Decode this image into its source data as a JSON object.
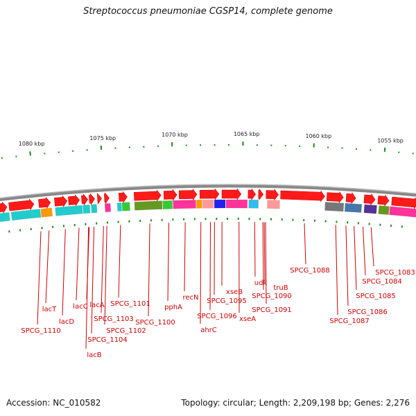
{
  "title": "Streptococcus pneumoniae CGSP14, complete genome",
  "footer": {
    "accession": "Accession: NC_010582",
    "summary": "Topology: circular; Length: 2,209,198 bp; Genes: 2,276"
  },
  "ruler_ticks": [
    "1080 kbp",
    "1075 kbp",
    "1070 kbp",
    "1065 kbp",
    "1060 kbp",
    "1055 kbp"
  ],
  "gene_labels": [
    "lacT",
    "SPCG_1110",
    "lacD",
    "lacC",
    "lacA",
    "lacB",
    "SPCG_1104",
    "SPCG_1103",
    "SPCG_1102",
    "SPCG_1101",
    "SPCG_1100",
    "pphA",
    "recN",
    "ahrC",
    "SPCG_1096",
    "SPCG_1095",
    "xseB",
    "xseA",
    "udk",
    "truB",
    "SPCG_1090",
    "SPCG_1091",
    "SPCG_1088",
    "SPCG_1087",
    "SPCG_1086",
    "SPCG_1085",
    "SPCG_1084",
    "SPCG_1083"
  ],
  "colors": {
    "forward_gene": "#ff1a1a",
    "backbone": "#777777",
    "tick": "#1a8a1a",
    "label": "#cc0000",
    "cyan": "#22cccc",
    "orange": "#ff9900",
    "magenta": "#ff3399",
    "olive": "#669922",
    "green": "#33cc33",
    "blue": "#2222ee",
    "sky": "#33bbee",
    "salmon": "#ff9999",
    "gray": "#777777",
    "steel": "#4477aa",
    "purple": "#553399"
  }
}
